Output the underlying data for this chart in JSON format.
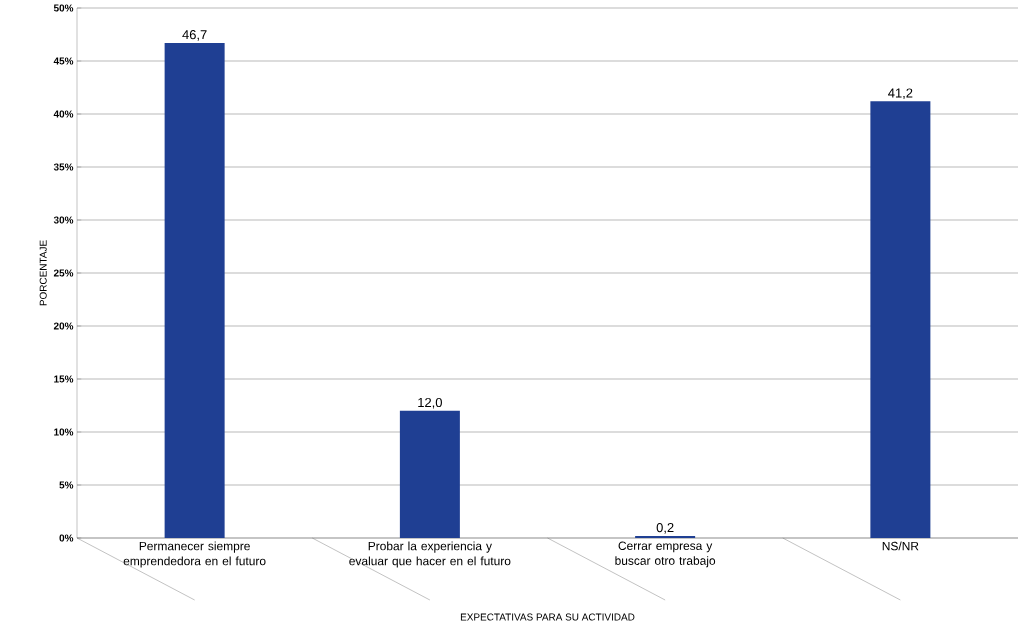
{
  "chart_data": {
    "type": "bar",
    "xlabel": "EXPECTATIVAS PARA SU ACTIVIDAD",
    "ylabel": "PORCENTAJE",
    "categories": [
      "Permanecer siempre emprendedora en el futuro",
      "Probar la experiencia y evaluar que hacer en el futuro",
      "Cerrar empresa y buscar otro trabajo",
      "NS/NR"
    ],
    "values": [
      46.7,
      12.0,
      0.2,
      41.2
    ],
    "value_labels": [
      "46,7",
      "12,0",
      "0,2",
      "41,2"
    ],
    "color": "#1f3f93",
    "ylim": [
      0,
      50
    ],
    "yticks": [
      {
        "value": 0,
        "label": "0%"
      },
      {
        "value": 5,
        "label": "5%"
      },
      {
        "value": 10,
        "label": "10%"
      },
      {
        "value": 15,
        "label": "15%"
      },
      {
        "value": 20,
        "label": "20%"
      },
      {
        "value": 25,
        "label": "25%"
      },
      {
        "value": 30,
        "label": "30%"
      },
      {
        "value": 35,
        "label": "35%"
      },
      {
        "value": 40,
        "label": "40%"
      },
      {
        "value": 45,
        "label": "45%"
      },
      {
        "value": 50,
        "label": "50%"
      }
    ],
    "grid": "y"
  }
}
